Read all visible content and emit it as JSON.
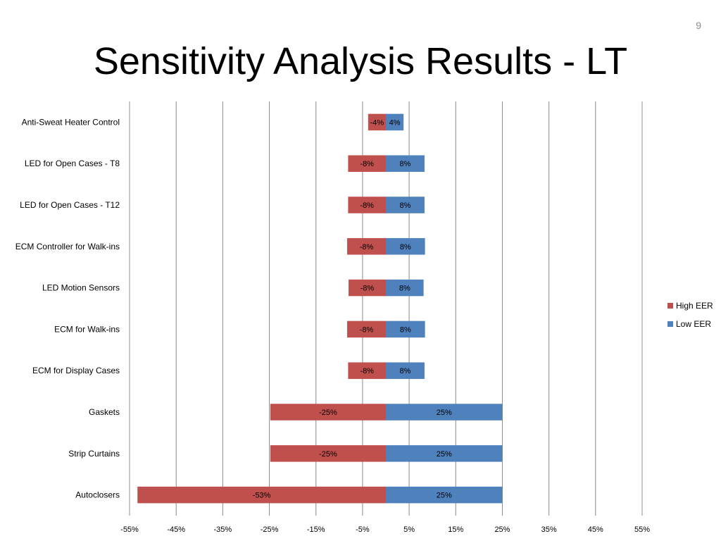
{
  "slide": {
    "number": "9",
    "title": "Sensitivity Analysis Results - LT"
  },
  "chart_data": {
    "type": "bar",
    "orientation": "horizontal",
    "stacked": true,
    "categories": [
      "Anti-Sweat Heater Control",
      "LED for Open Cases - T8",
      "LED for Open Cases - T12",
      "ECM Controller for Walk-ins",
      "LED Motion Sensors",
      "ECM for Walk-ins",
      "ECM for Display Cases",
      "Gaskets",
      "Strip Curtains",
      "Autoclosers"
    ],
    "series": [
      {
        "name": "High EER",
        "color": "#c0504d",
        "values": [
          -3.8,
          -8.1,
          -8.1,
          -8.3,
          -8.0,
          -8.3,
          -8.1,
          -24.8,
          -24.8,
          -53.3
        ],
        "labels": [
          "-4%",
          "-8%",
          "-8%",
          "-8%",
          "-8%",
          "-8%",
          "-8%",
          "-25%",
          "-25%",
          "-53%"
        ]
      },
      {
        "name": "Low EER",
        "color": "#4f81bd",
        "values": [
          3.8,
          8.3,
          8.3,
          8.4,
          8.1,
          8.4,
          8.3,
          25.0,
          25.0,
          25.0
        ],
        "labels": [
          "4%",
          "8%",
          "8%",
          "8%",
          "8%",
          "8%",
          "8%",
          "25%",
          "25%",
          "25%"
        ]
      }
    ],
    "xlim": [
      -55,
      55
    ],
    "xticks": [
      -55,
      -45,
      -35,
      -25,
      -15,
      -5,
      5,
      15,
      25,
      35,
      45,
      55
    ],
    "xtick_labels": [
      "-55%",
      "-45%",
      "-35%",
      "-25%",
      "-15%",
      "-5%",
      "5%",
      "15%",
      "25%",
      "35%",
      "45%",
      "55%"
    ],
    "grid": "vertical",
    "legend": "right",
    "grid_color": "#8c8c8c"
  }
}
